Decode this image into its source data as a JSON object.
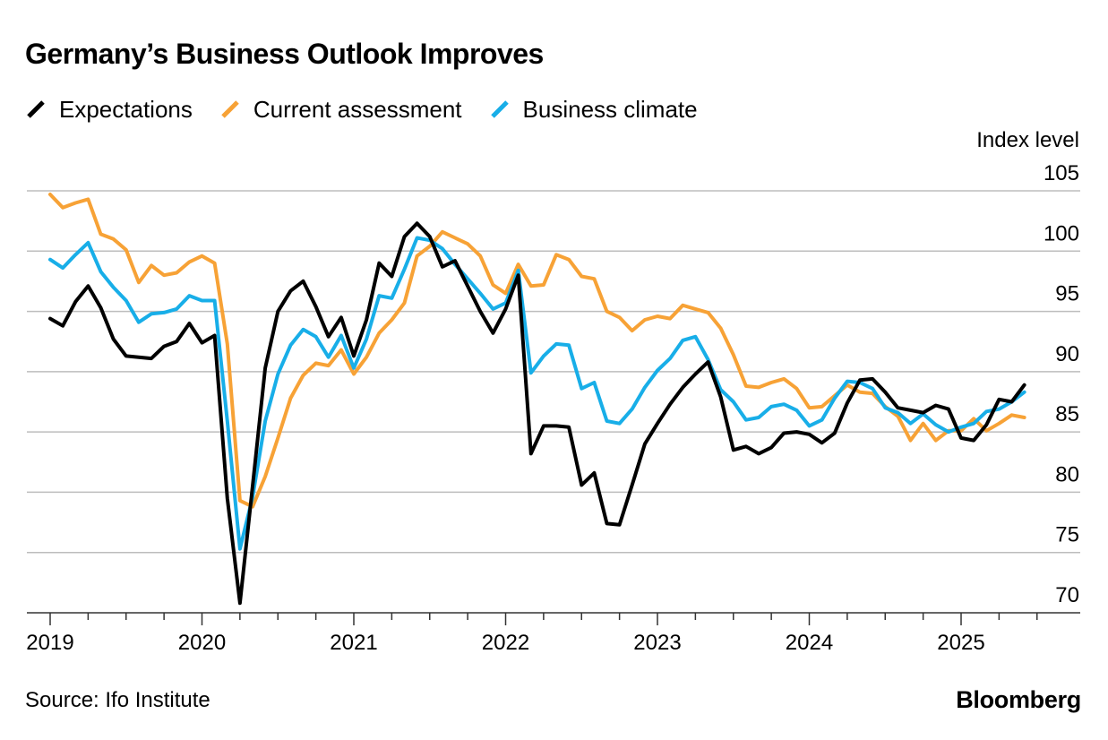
{
  "title": "Germany’s Business Outlook Improves",
  "unit_label": "Index level",
  "source": "Source: Ifo Institute",
  "brand": "Bloomberg",
  "colors": {
    "Expectations": "#000000",
    "Current assessment": "#f7a236",
    "Business climate": "#18aee8",
    "grid": "#bdbdbd",
    "axis": "#333333"
  },
  "chart_data": {
    "type": "line",
    "title": "Germany’s Business Outlook Improves",
    "ylabel": "Index level",
    "ylim": [
      70,
      105
    ],
    "yticks": [
      70,
      75,
      80,
      85,
      90,
      95,
      100,
      105
    ],
    "xlim": [
      2019.0,
      2025.7
    ],
    "xticks": [
      2019,
      2020,
      2021,
      2022,
      2023,
      2024,
      2025
    ],
    "grid": "horizontal",
    "legend": "top-left",
    "x_start": "2019-01",
    "frequency": "monthly",
    "series": [
      {
        "name": "Expectations",
        "values": [
          94.4,
          93.8,
          95.8,
          97.1,
          95.3,
          92.7,
          91.3,
          91.2,
          91.1,
          92.1,
          92.5,
          94.0,
          92.4,
          93.0,
          79.5,
          70.8,
          80.5,
          90.3,
          95.0,
          96.7,
          97.5,
          95.4,
          92.9,
          94.5,
          91.3,
          94.3,
          99.0,
          97.9,
          101.2,
          102.3,
          101.2,
          98.7,
          99.2,
          97.1,
          95.0,
          93.2,
          95.2,
          98.0,
          83.2,
          85.5,
          85.5,
          85.4,
          80.6,
          81.6,
          77.4,
          77.3,
          80.6,
          84.0,
          85.7,
          87.3,
          88.7,
          89.8,
          90.8,
          87.9,
          83.5,
          83.8,
          83.2,
          83.7,
          84.9,
          85.0,
          84.8,
          84.1,
          84.9,
          87.4,
          89.3,
          89.4,
          88.3,
          87.0,
          86.8,
          86.6,
          87.2,
          86.9,
          84.5,
          84.3,
          85.6,
          87.7,
          87.5,
          88.9
        ]
      },
      {
        "name": "Current assessment",
        "values": [
          104.7,
          103.6,
          104.0,
          104.3,
          101.4,
          101.0,
          100.1,
          97.4,
          98.8,
          98.0,
          98.2,
          99.1,
          99.6,
          99.0,
          92.3,
          79.3,
          78.8,
          81.3,
          84.5,
          87.8,
          89.7,
          90.7,
          90.5,
          91.8,
          89.8,
          91.2,
          93.2,
          94.3,
          95.7,
          99.6,
          100.4,
          101.6,
          101.1,
          100.6,
          99.6,
          97.2,
          96.5,
          98.9,
          97.1,
          97.2,
          99.7,
          99.3,
          97.9,
          97.7,
          95.0,
          94.5,
          93.4,
          94.3,
          94.6,
          94.4,
          95.5,
          95.2,
          94.9,
          93.6,
          91.4,
          88.8,
          88.7,
          89.1,
          89.4,
          88.6,
          87.0,
          87.1,
          88.0,
          88.9,
          88.3,
          88.2,
          87.1,
          86.3,
          84.3,
          85.7,
          84.3,
          85.1,
          85.1,
          86.1,
          85.1,
          85.7,
          86.4,
          86.2
        ]
      },
      {
        "name": "Business climate",
        "values": [
          99.3,
          98.6,
          99.7,
          100.7,
          98.3,
          97.0,
          95.9,
          94.1,
          94.8,
          94.9,
          95.2,
          96.3,
          95.9,
          95.9,
          85.9,
          75.3,
          79.6,
          85.9,
          89.8,
          92.2,
          93.5,
          92.9,
          91.2,
          93.0,
          90.3,
          92.7,
          96.3,
          96.1,
          98.5,
          101.1,
          100.9,
          100.2,
          98.9,
          97.7,
          96.5,
          95.2,
          95.7,
          98.4,
          89.9,
          91.3,
          92.3,
          92.2,
          88.6,
          89.1,
          85.9,
          85.7,
          86.9,
          88.7,
          90.1,
          91.1,
          92.6,
          92.9,
          91.0,
          88.5,
          87.5,
          86.0,
          86.2,
          87.1,
          87.3,
          86.8,
          85.5,
          86.0,
          87.8,
          89.2,
          89.1,
          88.6,
          87.0,
          86.6,
          85.7,
          86.5,
          85.6,
          85.0,
          85.4,
          85.7,
          86.7,
          86.9,
          87.5,
          88.3
        ]
      }
    ]
  }
}
